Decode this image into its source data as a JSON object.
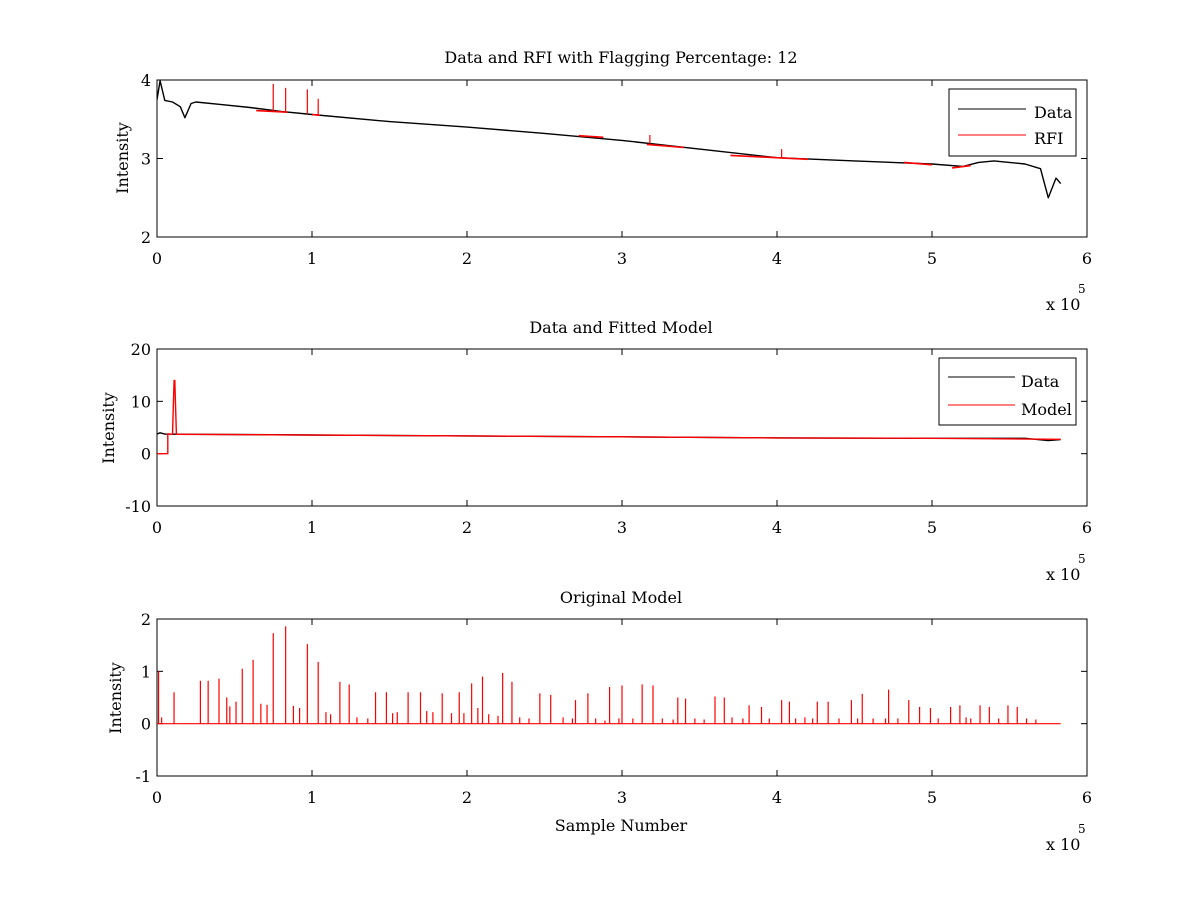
{
  "chart_data": [
    {
      "type": "line",
      "title": "Data and RFI with Flagging Percentage: 12",
      "ylabel": "Intensity",
      "xlabel": "",
      "xlim": [
        0,
        600000
      ],
      "ylim": [
        2,
        4
      ],
      "x_ticks": [
        0,
        100000,
        200000,
        300000,
        400000,
        500000,
        600000
      ],
      "x_tick_labels": [
        "0",
        "1",
        "2",
        "3",
        "4",
        "5",
        "6"
      ],
      "x_multiplier_label": "x 10",
      "x_multiplier_exponent": "5",
      "y_ticks": [
        2,
        3,
        4
      ],
      "y_tick_labels": [
        "2",
        "3",
        "4"
      ],
      "grid": false,
      "legend": "top-right",
      "series": [
        {
          "name": "Data",
          "color": "#000000",
          "x": [
            0,
            2000,
            5000,
            10000,
            15000,
            18000,
            22000,
            25000,
            40000,
            60000,
            80000,
            100000,
            150000,
            200000,
            250000,
            300000,
            350000,
            400000,
            450000,
            500000,
            520000,
            530000,
            540000,
            560000,
            570000,
            575000,
            580000,
            583000
          ],
          "y": [
            3.75,
            3.99,
            3.74,
            3.72,
            3.66,
            3.52,
            3.7,
            3.72,
            3.69,
            3.65,
            3.6,
            3.56,
            3.47,
            3.4,
            3.32,
            3.23,
            3.12,
            3.01,
            2.97,
            2.93,
            2.9,
            2.95,
            2.97,
            2.93,
            2.87,
            2.5,
            2.75,
            2.68
          ]
        },
        {
          "name": "RFI",
          "color": "#ff0000",
          "segments": [
            {
              "x": [
                64000,
                84000
              ],
              "y": [
                3.61,
                3.59
              ]
            },
            {
              "x": [
                100000,
                105000
              ],
              "y": [
                3.56,
                3.55
              ]
            },
            {
              "x": [
                272000,
                288000
              ],
              "y": [
                3.29,
                3.27
              ]
            },
            {
              "x": [
                316000,
                340000
              ],
              "y": [
                3.18,
                3.14
              ]
            },
            {
              "x": [
                370000,
                420000
              ],
              "y": [
                3.04,
                2.99
              ]
            },
            {
              "x": [
                482000,
                500000
              ],
              "y": [
                2.95,
                2.92
              ]
            },
            {
              "x": [
                513000,
                525000
              ],
              "y": [
                2.88,
                2.91
              ]
            }
          ],
          "spikes": [
            {
              "x": 75000,
              "y": 3.95
            },
            {
              "x": 83000,
              "y": 3.9
            },
            {
              "x": 97000,
              "y": 3.88
            },
            {
              "x": 104000,
              "y": 3.76
            },
            {
              "x": 318000,
              "y": 3.3
            },
            {
              "x": 403000,
              "y": 3.12
            }
          ]
        }
      ]
    },
    {
      "type": "line",
      "title": "Data and Fitted Model",
      "ylabel": "Intensity",
      "xlabel": "",
      "xlim": [
        0,
        600000
      ],
      "ylim": [
        -10,
        20
      ],
      "x_ticks": [
        0,
        100000,
        200000,
        300000,
        400000,
        500000,
        600000
      ],
      "x_tick_labels": [
        "0",
        "1",
        "2",
        "3",
        "4",
        "5",
        "6"
      ],
      "x_multiplier_label": "x 10",
      "x_multiplier_exponent": "5",
      "y_ticks": [
        -10,
        0,
        10,
        20
      ],
      "y_tick_labels": [
        "-10",
        "0",
        "10",
        "20"
      ],
      "grid": false,
      "legend": "top-right",
      "series": [
        {
          "name": "Data",
          "color": "#000000",
          "x": [
            0,
            2000,
            5000,
            10000,
            40000,
            100000,
            200000,
            300000,
            400000,
            500000,
            560000,
            575000,
            583000
          ],
          "y": [
            3.75,
            3.99,
            3.74,
            3.72,
            3.69,
            3.56,
            3.4,
            3.23,
            3.01,
            2.93,
            2.93,
            2.5,
            2.68
          ]
        },
        {
          "name": "Model",
          "color": "#ff0000",
          "x": [
            0,
            7000,
            7000,
            10000,
            11000,
            11500,
            12500,
            13000,
            40000,
            100000,
            200000,
            300000,
            400000,
            500000,
            583000
          ],
          "y": [
            0,
            0,
            3.8,
            3.7,
            14,
            14,
            3.7,
            3.7,
            3.66,
            3.55,
            3.4,
            3.22,
            3.02,
            2.93,
            2.75
          ]
        }
      ]
    },
    {
      "type": "line",
      "title": "Original Model",
      "ylabel": "Intensity",
      "xlabel": "Sample Number",
      "xlim": [
        0,
        600000
      ],
      "ylim": [
        -1,
        2
      ],
      "x_ticks": [
        0,
        100000,
        200000,
        300000,
        400000,
        500000,
        600000
      ],
      "x_tick_labels": [
        "0",
        "1",
        "2",
        "3",
        "4",
        "5",
        "6"
      ],
      "x_multiplier_label": "x 10",
      "x_multiplier_exponent": "5",
      "y_ticks": [
        -1,
        0,
        1,
        2
      ],
      "y_tick_labels": [
        "-1",
        "0",
        "1",
        "2"
      ],
      "grid": false,
      "legend": "none",
      "series": [
        {
          "color": "#ff0000",
          "baseline": 0,
          "x_end": 583000,
          "spikes": [
            {
              "x": 1000,
              "y": 1.0
            },
            {
              "x": 3000,
              "y": 0.12
            },
            {
              "x": 11000,
              "y": 0.6
            },
            {
              "x": 28000,
              "y": 0.82
            },
            {
              "x": 33000,
              "y": 0.82
            },
            {
              "x": 40000,
              "y": 0.86
            },
            {
              "x": 45000,
              "y": 0.5
            },
            {
              "x": 47000,
              "y": 0.33
            },
            {
              "x": 51000,
              "y": 0.42
            },
            {
              "x": 55000,
              "y": 1.05
            },
            {
              "x": 62000,
              "y": 1.22
            },
            {
              "x": 67000,
              "y": 0.38
            },
            {
              "x": 71000,
              "y": 0.36
            },
            {
              "x": 75000,
              "y": 1.73
            },
            {
              "x": 83000,
              "y": 1.86
            },
            {
              "x": 88000,
              "y": 0.34
            },
            {
              "x": 92000,
              "y": 0.3
            },
            {
              "x": 97000,
              "y": 1.52
            },
            {
              "x": 104000,
              "y": 1.18
            },
            {
              "x": 109000,
              "y": 0.22
            },
            {
              "x": 112000,
              "y": 0.18
            },
            {
              "x": 118000,
              "y": 0.8
            },
            {
              "x": 124000,
              "y": 0.75
            },
            {
              "x": 129000,
              "y": 0.12
            },
            {
              "x": 136000,
              "y": 0.1
            },
            {
              "x": 141000,
              "y": 0.6
            },
            {
              "x": 148000,
              "y": 0.6
            },
            {
              "x": 152000,
              "y": 0.2
            },
            {
              "x": 155000,
              "y": 0.22
            },
            {
              "x": 162000,
              "y": 0.6
            },
            {
              "x": 170000,
              "y": 0.6
            },
            {
              "x": 174000,
              "y": 0.24
            },
            {
              "x": 178000,
              "y": 0.22
            },
            {
              "x": 184000,
              "y": 0.58
            },
            {
              "x": 190000,
              "y": 0.2
            },
            {
              "x": 195000,
              "y": 0.6
            },
            {
              "x": 198000,
              "y": 0.2
            },
            {
              "x": 203000,
              "y": 0.77
            },
            {
              "x": 207000,
              "y": 0.3
            },
            {
              "x": 210000,
              "y": 0.9
            },
            {
              "x": 214000,
              "y": 0.18
            },
            {
              "x": 220000,
              "y": 0.15
            },
            {
              "x": 223000,
              "y": 0.97
            },
            {
              "x": 229000,
              "y": 0.8
            },
            {
              "x": 234000,
              "y": 0.12
            },
            {
              "x": 240000,
              "y": 0.1
            },
            {
              "x": 247000,
              "y": 0.58
            },
            {
              "x": 254000,
              "y": 0.55
            },
            {
              "x": 262000,
              "y": 0.12
            },
            {
              "x": 268000,
              "y": 0.1
            },
            {
              "x": 270000,
              "y": 0.45
            },
            {
              "x": 278000,
              "y": 0.58
            },
            {
              "x": 283000,
              "y": 0.1
            },
            {
              "x": 289000,
              "y": 0.06
            },
            {
              "x": 292000,
              "y": 0.7
            },
            {
              "x": 298000,
              "y": 0.1
            },
            {
              "x": 300000,
              "y": 0.73
            },
            {
              "x": 307000,
              "y": 0.1
            },
            {
              "x": 313000,
              "y": 0.75
            },
            {
              "x": 320000,
              "y": 0.73
            },
            {
              "x": 326000,
              "y": 0.1
            },
            {
              "x": 333000,
              "y": 0.08
            },
            {
              "x": 336000,
              "y": 0.5
            },
            {
              "x": 341000,
              "y": 0.48
            },
            {
              "x": 347000,
              "y": 0.1
            },
            {
              "x": 353000,
              "y": 0.08
            },
            {
              "x": 360000,
              "y": 0.52
            },
            {
              "x": 366000,
              "y": 0.5
            },
            {
              "x": 371000,
              "y": 0.12
            },
            {
              "x": 378000,
              "y": 0.1
            },
            {
              "x": 382000,
              "y": 0.35
            },
            {
              "x": 390000,
              "y": 0.32
            },
            {
              "x": 395000,
              "y": 0.1
            },
            {
              "x": 403000,
              "y": 0.45
            },
            {
              "x": 408000,
              "y": 0.42
            },
            {
              "x": 412000,
              "y": 0.1
            },
            {
              "x": 418000,
              "y": 0.12
            },
            {
              "x": 423000,
              "y": 0.1
            },
            {
              "x": 426000,
              "y": 0.42
            },
            {
              "x": 433000,
              "y": 0.42
            },
            {
              "x": 440000,
              "y": 0.1
            },
            {
              "x": 448000,
              "y": 0.45
            },
            {
              "x": 452000,
              "y": 0.1
            },
            {
              "x": 455000,
              "y": 0.57
            },
            {
              "x": 462000,
              "y": 0.1
            },
            {
              "x": 470000,
              "y": 0.1
            },
            {
              "x": 472000,
              "y": 0.65
            },
            {
              "x": 478000,
              "y": 0.1
            },
            {
              "x": 485000,
              "y": 0.45
            },
            {
              "x": 492000,
              "y": 0.32
            },
            {
              "x": 499000,
              "y": 0.3
            },
            {
              "x": 504000,
              "y": 0.1
            },
            {
              "x": 512000,
              "y": 0.32
            },
            {
              "x": 518000,
              "y": 0.35
            },
            {
              "x": 522000,
              "y": 0.12
            },
            {
              "x": 525000,
              "y": 0.1
            },
            {
              "x": 531000,
              "y": 0.35
            },
            {
              "x": 537000,
              "y": 0.32
            },
            {
              "x": 543000,
              "y": 0.1
            },
            {
              "x": 549000,
              "y": 0.35
            },
            {
              "x": 555000,
              "y": 0.32
            },
            {
              "x": 561000,
              "y": 0.1
            },
            {
              "x": 567000,
              "y": 0.08
            }
          ]
        }
      ]
    }
  ]
}
